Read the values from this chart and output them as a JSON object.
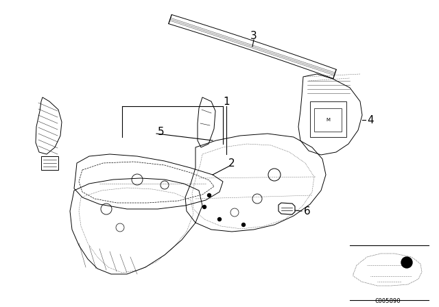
{
  "background_color": "#ffffff",
  "diagram_code": "C005890",
  "lc": "black",
  "lw": 0.7
}
